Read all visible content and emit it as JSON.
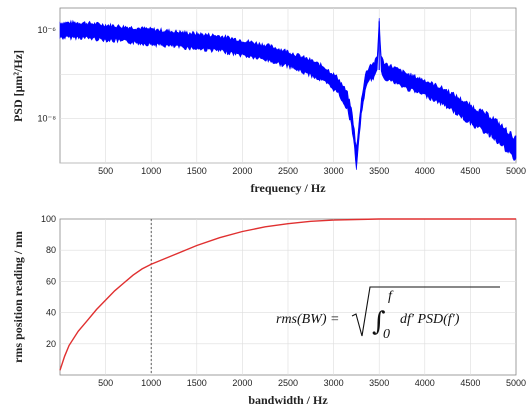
{
  "chart_data": [
    {
      "type": "line",
      "xlabel": "frequency / Hz",
      "ylabel": "PSD [μm²/Hz]",
      "xlim": [
        0,
        5000
      ],
      "ylim_exponent": [
        -9,
        -5.5
      ],
      "yscale": "log",
      "grid": true,
      "x_ticks": [
        500,
        1000,
        1500,
        2000,
        2500,
        3000,
        3500,
        4000,
        4500,
        5000
      ],
      "y_tick_labels": [
        "10⁻⁶",
        "10⁻⁸"
      ],
      "y_tick_exponents": [
        -6,
        -8
      ],
      "color": "#0000ff",
      "series": [
        {
          "x": [
            0,
            250,
            500,
            750,
            1000,
            1250,
            1500,
            1750,
            2000,
            2250,
            2500,
            2750,
            2900,
            3050,
            3150,
            3200,
            3230,
            3250,
            3270,
            3300,
            3350,
            3400,
            3450,
            3480,
            3500,
            3520,
            3550,
            3650,
            3800,
            4000,
            4250,
            4500,
            4750,
            4900,
            5000
          ],
          "y_exponent": [
            -6.0,
            -6.0,
            -6.05,
            -6.1,
            -6.15,
            -6.2,
            -6.25,
            -6.3,
            -6.4,
            -6.5,
            -6.65,
            -6.85,
            -7.0,
            -7.25,
            -7.6,
            -8.0,
            -8.5,
            -8.9,
            -8.5,
            -7.8,
            -7.15,
            -6.95,
            -6.9,
            -6.75,
            -5.8,
            -6.75,
            -6.9,
            -7.0,
            -7.15,
            -7.3,
            -7.55,
            -7.9,
            -8.2,
            -8.5,
            -8.7
          ],
          "spread": [
            0.22,
            0.22,
            0.22,
            0.22,
            0.22,
            0.22,
            0.22,
            0.22,
            0.22,
            0.22,
            0.22,
            0.22,
            0.22,
            0.22,
            0.24,
            0.24,
            0.26,
            0.28,
            0.26,
            0.24,
            0.22,
            0.22,
            0.22,
            0.22,
            0.1,
            0.22,
            0.22,
            0.22,
            0.22,
            0.22,
            0.24,
            0.26,
            0.28,
            0.3,
            0.32
          ]
        }
      ]
    },
    {
      "type": "line",
      "xlabel": "bandwidth / Hz",
      "ylabel": "rms position reading / nm",
      "xlim": [
        0,
        5000
      ],
      "ylim": [
        0,
        100
      ],
      "grid": true,
      "x_ticks": [
        500,
        1000,
        1500,
        2000,
        2500,
        3000,
        3500,
        4000,
        4500,
        5000
      ],
      "y_ticks": [
        20,
        40,
        60,
        80,
        100
      ],
      "vline_x": 1000,
      "annotation": {
        "lhs": "rms(BW) =",
        "integral_upper": "f",
        "integral_lower": "0",
        "integrand": "df′ PSD(f′)"
      },
      "series": [
        {
          "color": "#e03030",
          "x": [
            0,
            50,
            100,
            200,
            300,
            400,
            500,
            600,
            700,
            800,
            900,
            1000,
            1250,
            1500,
            1750,
            2000,
            2250,
            2500,
            2750,
            3000,
            3250,
            3500,
            3750,
            4000,
            4500,
            5000
          ],
          "y": [
            3,
            12,
            19,
            28,
            35,
            42,
            48,
            54,
            59,
            64,
            68,
            71,
            77,
            83,
            88,
            92,
            95,
            97,
            98.5,
            99.3,
            99.7,
            100,
            100,
            100,
            100,
            100
          ]
        }
      ]
    }
  ]
}
